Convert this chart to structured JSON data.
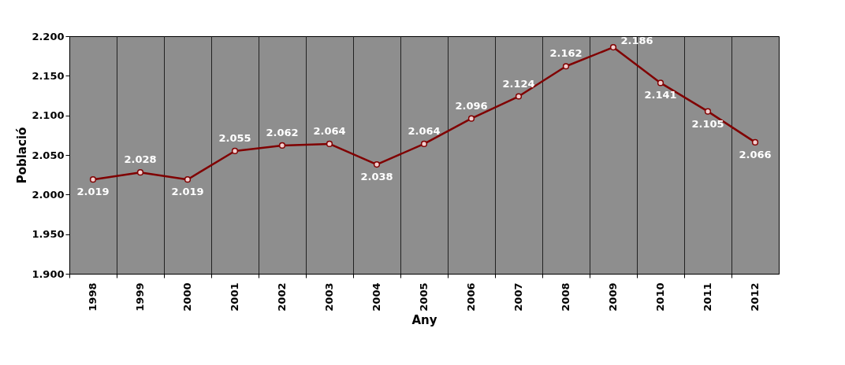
{
  "chart_data": {
    "type": "line",
    "xlabel": "Any",
    "ylabel": "Població",
    "categories": [
      "1998",
      "1999",
      "2000",
      "2001",
      "2002",
      "2003",
      "2004",
      "2005",
      "2006",
      "2007",
      "2008",
      "2009",
      "2010",
      "2011",
      "2012"
    ],
    "series": [
      {
        "color": "#800000",
        "values": [
          2019,
          2028,
          2019,
          2055,
          2062,
          2064,
          2038,
          2064,
          2096,
          2124,
          2162,
          2186,
          2141,
          2105,
          2066
        ],
        "value_labels": [
          "2.019",
          "2.028",
          "2.019",
          "2.055",
          "2.062",
          "2.064",
          "2.038",
          "2.064",
          "2.096",
          "2.124",
          "2.162",
          "2.186",
          "2.141",
          "2.105",
          "2.066"
        ]
      }
    ],
    "ylim": [
      1900,
      2200
    ],
    "yticks": [
      {
        "value": 1900,
        "label": "1.900"
      },
      {
        "value": 1950,
        "label": "1.950"
      },
      {
        "value": 2000,
        "label": "2.000"
      },
      {
        "value": 2050,
        "label": "2.050"
      },
      {
        "value": 2100,
        "label": "2.100"
      },
      {
        "value": 2150,
        "label": "2.150"
      },
      {
        "value": 2200,
        "label": "2.200"
      }
    ],
    "grid": "x",
    "marker": "circle",
    "line_style": "solid"
  }
}
